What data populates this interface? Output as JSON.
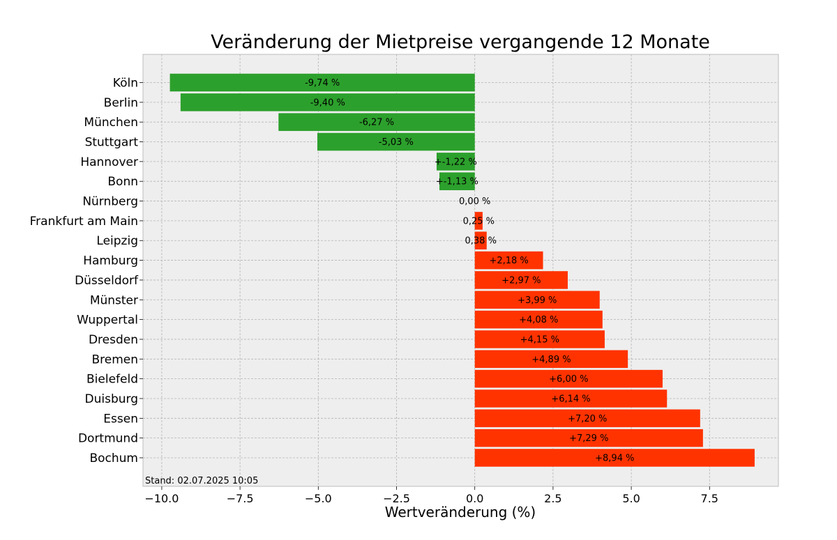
{
  "chart_data": {
    "type": "bar",
    "orientation": "horizontal",
    "title": "Veränderung der Mietpreise vergangende 12 Monate",
    "xlabel": "Wertveränderung (%)",
    "ylabel": "",
    "xlim": [
      -10.6,
      9.7
    ],
    "xticks": [
      -10.0,
      -7.5,
      -5.0,
      -2.5,
      0.0,
      2.5,
      5.0,
      7.5
    ],
    "xtick_labels": [
      "−10.0",
      "−7.5",
      "−5.0",
      "−2.5",
      "0.0",
      "2.5",
      "5.0",
      "7.5"
    ],
    "grid": true,
    "categories": [
      "Köln",
      "Berlin",
      "München",
      "Stuttgart",
      "Hannover",
      "Bonn",
      "Nürnberg",
      "Frankfurt am Main",
      "Leipzig",
      "Hamburg",
      "Düsseldorf",
      "Münster",
      "Wuppertal",
      "Dresden",
      "Bremen",
      "Bielefeld",
      "Duisburg",
      "Essen",
      "Dortmund",
      "Bochum"
    ],
    "values": [
      -9.74,
      -9.4,
      -6.27,
      -5.03,
      -1.22,
      -1.13,
      0.0,
      0.25,
      0.38,
      2.18,
      2.97,
      3.99,
      4.08,
      4.15,
      4.89,
      6.0,
      6.14,
      7.2,
      7.29,
      8.94
    ],
    "data_labels": [
      "-9,74 %",
      "-9,40 %",
      "-6,27 %",
      "-5,03 %",
      "+-1,22 %",
      "+-1,13 %",
      "0,00 %",
      "0,25 %",
      "0,38 %",
      "+2,18 %",
      "+2,97 %",
      "+3,99 %",
      "+4,08 %",
      "+4,15 %",
      "+4,89 %",
      "+6,00 %",
      "+6,14 %",
      "+7,20 %",
      "+7,29 %",
      "+8,94 %"
    ],
    "colors": {
      "negative": "#2ca02c",
      "positive": "#ff3300",
      "background": "#eeeeee"
    },
    "footnote": "Stand: 02.07.2025 10:05"
  }
}
